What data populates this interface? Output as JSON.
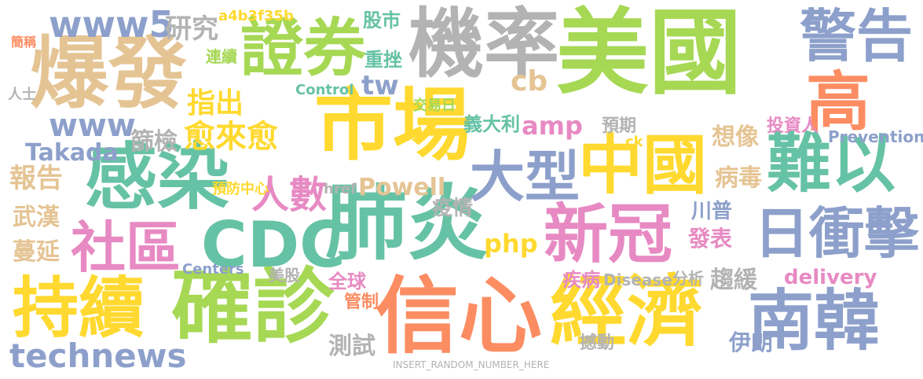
{
  "words": [
    {
      "text": "美國",
      "color": "#a6d854"
    },
    {
      "text": "市場",
      "color": "#ffd92f"
    },
    {
      "text": "肺炎",
      "color": "#66c2a5"
    },
    {
      "text": "信心",
      "color": "#fc8d62"
    },
    {
      "text": "經濟",
      "color": "#ffd92f"
    },
    {
      "text": "確診",
      "color": "#a6d854"
    },
    {
      "text": "機率",
      "color": "#b3b3b3"
    },
    {
      "text": "爆發",
      "color": "#e5c494"
    },
    {
      "text": "證券",
      "color": "#a6d854"
    },
    {
      "text": "警告",
      "color": "#8da0cb"
    },
    {
      "text": "感染",
      "color": "#66c2a5"
    },
    {
      "text": "持續",
      "color": "#ffd92f"
    },
    {
      "text": "中國",
      "color": "#ffd92f"
    },
    {
      "text": "新冠",
      "color": "#e78ac3"
    },
    {
      "text": "難以",
      "color": "#66c2a5"
    },
    {
      "text": "南韓",
      "color": "#8da0cb"
    },
    {
      "text": "日衝擊",
      "color": "#8da0cb"
    },
    {
      "text": "CDC",
      "color": "#66c2a5"
    },
    {
      "text": "社區",
      "color": "#e78ac3"
    },
    {
      "text": "大型",
      "color": "#8da0cb"
    },
    {
      "text": "高",
      "color": "#fc8d62"
    },
    {
      "text": "www5",
      "color": "#8da0cb"
    },
    {
      "text": "www",
      "color": "#8da0cb"
    },
    {
      "text": "technews",
      "color": "#8da0cb"
    },
    {
      "text": "人數",
      "color": "#e78ac3"
    },
    {
      "text": "愈來愈",
      "color": "#ffd92f"
    },
    {
      "text": "Powell",
      "color": "#e5c494"
    },
    {
      "text": "delivery",
      "color": "#e78ac3"
    },
    {
      "text": "指出",
      "color": "#ffd92f"
    },
    {
      "text": "研究",
      "color": "#b3b3b3"
    },
    {
      "text": "Takada",
      "color": "#8da0cb"
    },
    {
      "text": "報告",
      "color": "#e5c494"
    },
    {
      "text": "武漢",
      "color": "#e5c494"
    },
    {
      "text": "蔓延",
      "color": "#e5c494"
    },
    {
      "text": "篩檢",
      "color": "#b3b3b3"
    },
    {
      "text": "想像",
      "color": "#e5c494"
    },
    {
      "text": "投資人",
      "color": "#e78ac3"
    },
    {
      "text": "病毒",
      "color": "#e5c494"
    },
    {
      "text": "amp",
      "color": "#e78ac3"
    },
    {
      "text": "php",
      "color": "#ffd92f"
    },
    {
      "text": "tw",
      "color": "#8da0cb"
    },
    {
      "text": "cb",
      "color": "#e5c494"
    },
    {
      "text": "義大利",
      "color": "#66c2a5"
    },
    {
      "text": "疫情",
      "color": "#b3b3b3"
    },
    {
      "text": "川普",
      "color": "#8da0cb"
    },
    {
      "text": "發表",
      "color": "#e78ac3"
    },
    {
      "text": "伊朗",
      "color": "#8da0cb"
    },
    {
      "text": "趨緩",
      "color": "#b3b3b3"
    },
    {
      "text": "全球",
      "color": "#e78ac3"
    },
    {
      "text": "測試",
      "color": "#b3b3b3"
    },
    {
      "text": "股市",
      "color": "#66c2a5"
    },
    {
      "text": "重挫",
      "color": "#66c2a5"
    },
    {
      "text": "交易日",
      "color": "#a6d854"
    },
    {
      "text": "預期",
      "color": "#b3b3b3"
    },
    {
      "text": "Prevention",
      "color": "#8da0cb"
    },
    {
      "text": "Control",
      "color": "#66c2a5"
    },
    {
      "text": "Disease",
      "color": "#b3b3b3"
    },
    {
      "text": "Centers",
      "color": "#8da0cb"
    },
    {
      "text": "a4b3f35b",
      "color": "#ffd92f"
    },
    {
      "text": "預防中心",
      "color": "#ffd92f"
    },
    {
      "text": "疾病",
      "color": "#e78ac3"
    },
    {
      "text": "管制",
      "color": "#fc8d62"
    },
    {
      "text": "美股",
      "color": "#b3b3b3"
    },
    {
      "text": "分析",
      "color": "#b3b3b3"
    },
    {
      "text": "撼動",
      "color": "#b3b3b3"
    },
    {
      "text": "連續",
      "color": "#a6d854"
    },
    {
      "text": "href",
      "color": "#b3b3b3"
    },
    {
      "text": "INSERT_RANDOM_NUMBER_HERE",
      "color": "#b3b3b3"
    },
    {
      "text": "簡稱",
      "color": "#fc8d62"
    },
    {
      "text": "人士",
      "color": "#b3b3b3"
    },
    {
      "text": "ck",
      "color": "#ffd92f"
    }
  ]
}
